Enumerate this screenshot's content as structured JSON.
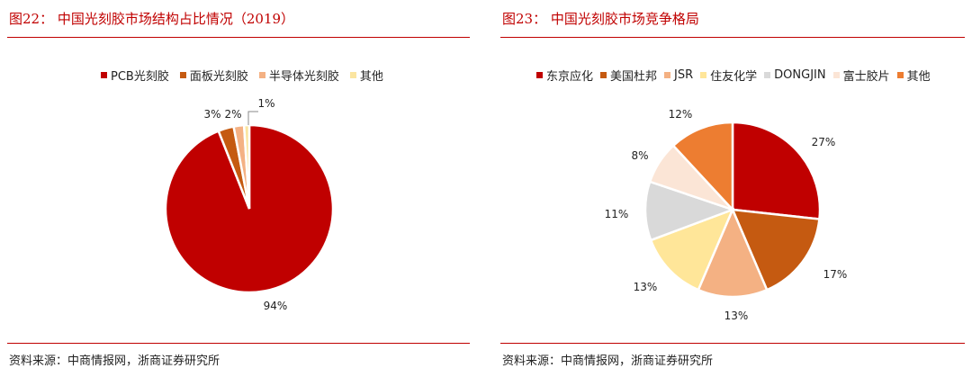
{
  "left": {
    "title": "图22： 中国光刻胶市场结构占比情况（2019）",
    "source": "资料来源：中商情报网，浙商证券研究所",
    "chart_data": {
      "type": "pie",
      "labels": [
        "PCB光刻胶",
        "面板光刻胶",
        "半导体光刻胶",
        "其他"
      ],
      "values": [
        94,
        3,
        2,
        1
      ],
      "value_labels": [
        "94%",
        "3%",
        "2%",
        "1%"
      ],
      "colors": [
        "#c00000",
        "#c55a11",
        "#f4b183",
        "#fbe5a0"
      ],
      "legend_position": "top"
    }
  },
  "right": {
    "title": "图23： 中国光刻胶市场竞争格局",
    "source": "资料来源：中商情报网，浙商证券研究所",
    "chart_data": {
      "type": "pie",
      "labels": [
        "东京应化",
        "美国杜邦",
        "JSR",
        "住友化学",
        "DONGJIN",
        "富士胶片",
        "其他"
      ],
      "values": [
        27,
        17,
        13,
        13,
        11,
        8,
        12
      ],
      "value_labels": [
        "27%",
        "17%",
        "13%",
        "13%",
        "11%",
        "8%",
        "12%"
      ],
      "colors": [
        "#c00000",
        "#c55a11",
        "#f4b183",
        "#ffe699",
        "#d9d9d9",
        "#fbe5d6",
        "#ed7d31"
      ],
      "legend_position": "top"
    }
  }
}
